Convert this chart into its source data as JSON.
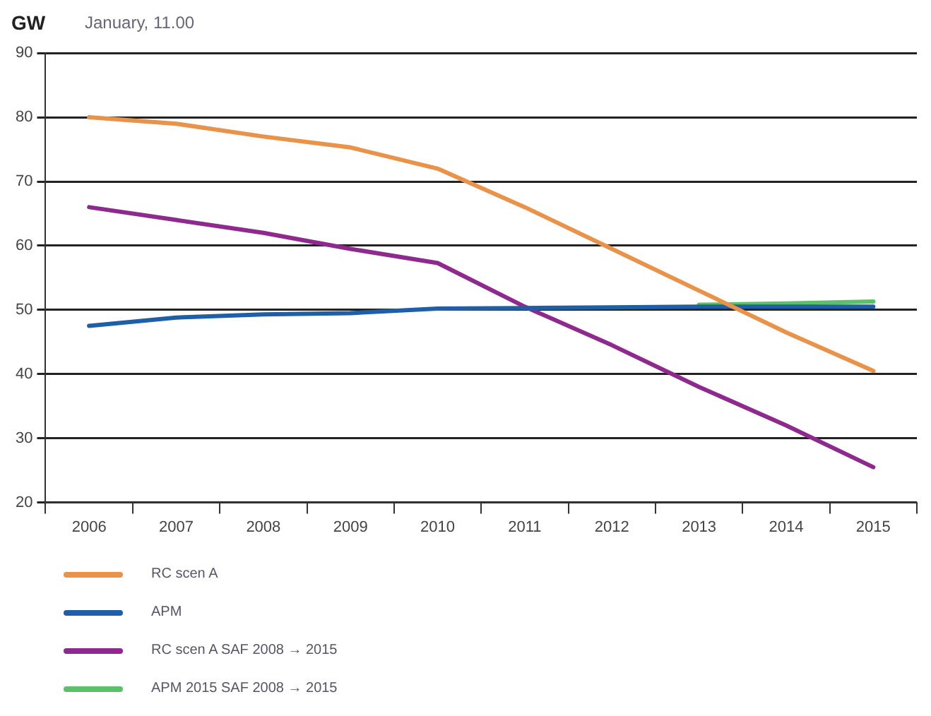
{
  "chart_data": {
    "type": "line",
    "title": "January, 11.00",
    "ylabel": "GW",
    "categories": [
      "2006",
      "2007",
      "2008",
      "2009",
      "2010",
      "2011",
      "2012",
      "2013",
      "2014",
      "2015"
    ],
    "series": [
      {
        "name": "RC scen A",
        "color": "#e8924a",
        "values": [
          80,
          79,
          77,
          75.3,
          72,
          66,
          59.5,
          53,
          46.5,
          40.5
        ]
      },
      {
        "name": "APM",
        "color": "#1f5fa8",
        "values": [
          47.5,
          48.8,
          49.3,
          49.5,
          50.2,
          50.3,
          50.4,
          50.5,
          50.5,
          50.5
        ]
      },
      {
        "name": "RC scen A SAF 2008 → 2015",
        "color": "#8e2a8e",
        "values": [
          66,
          64,
          62,
          59.5,
          57.3,
          50.5,
          44.5,
          38,
          32,
          25.5
        ]
      },
      {
        "name": "APM 2015 SAF 2008 → 2015",
        "color": "#5cc06a",
        "values": [
          null,
          null,
          null,
          null,
          null,
          null,
          null,
          50.8,
          51,
          51.3
        ]
      }
    ],
    "ylim": [
      20,
      90
    ],
    "yticks": [
      20,
      30,
      40,
      50,
      60,
      70,
      80,
      90
    ],
    "grid": "y",
    "legend": "bottom",
    "marker": "none",
    "line_style": "solid"
  }
}
